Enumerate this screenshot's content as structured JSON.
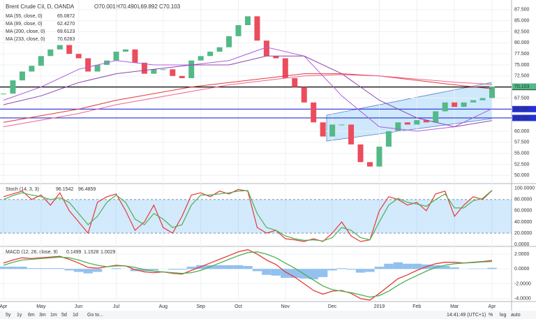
{
  "header": {
    "symbol": "Brent Crude Oil, D, OANDA",
    "ohlc": [
      "O70.001",
      "H70.490",
      "L69.892",
      "C70.103"
    ]
  },
  "chart_data": [
    {
      "type": "candlestick",
      "x_labels": [
        "Apr",
        "May",
        "Jun",
        "Jul",
        "Aug",
        "Sep",
        "Oct",
        "Nov",
        "Dec",
        "2019",
        "Feb",
        "Mar",
        "Apr"
      ],
      "closes": [
        68.5,
        71.5,
        73.5,
        74.8,
        77,
        78.5,
        79.5,
        77.5,
        76.5,
        73.5,
        75,
        76,
        78,
        78.5,
        75.5,
        73,
        74,
        74,
        72.5,
        72,
        76,
        77,
        78,
        79,
        81.5,
        84,
        86,
        80.5,
        77,
        76.5,
        72,
        70,
        66.5,
        62,
        58.8,
        61.5,
        61.5,
        57,
        53,
        52,
        56.5,
        60,
        62,
        61.5,
        62.5,
        62,
        64.5,
        66.5,
        65.5,
        66.5,
        67,
        67.5,
        70.1
      ],
      "up_color": "#53b987",
      "down_color": "#eb4d5c",
      "ylim": [
        48.3,
        88.9
      ],
      "yticks": [
        {
          "value": 50,
          "label": "50.000"
        },
        {
          "value": 52.5,
          "label": "52.500"
        },
        {
          "value": 55,
          "label": "55.000"
        },
        {
          "value": 57.5,
          "label": "57.500"
        },
        {
          "value": 60,
          "label": "60.000"
        },
        {
          "value": 67.5,
          "label": "67.500"
        },
        {
          "value": 72.5,
          "label": "72.500"
        },
        {
          "value": 75,
          "label": "75.000"
        },
        {
          "value": 77.5,
          "label": "77.500"
        },
        {
          "value": 80,
          "label": "80.000"
        },
        {
          "value": 82.5,
          "label": "82.500"
        },
        {
          "value": 85,
          "label": "85.000"
        },
        {
          "value": 87.5,
          "label": "87.500"
        }
      ],
      "grid": true,
      "series": [
        {
          "name": "MA (55, close, 0)",
          "last": "65.0872",
          "color": "#b05ce0",
          "values": [
            67,
            70,
            74,
            76,
            75,
            75,
            76,
            79,
            77,
            68,
            61,
            60,
            61,
            65.1
          ]
        },
        {
          "name": "MA (89, close, 0)",
          "last": "62.4270",
          "color": "#8e44ad",
          "values": [
            66,
            68,
            71,
            73,
            74,
            75,
            75,
            77,
            77,
            73,
            67,
            63,
            61,
            62.4
          ]
        },
        {
          "name": "MA (200, close, 0)",
          "last": "69.6123",
          "color": "#e53935",
          "values": [
            62,
            63.5,
            65,
            67,
            68.5,
            70,
            71,
            72,
            73,
            73,
            72.5,
            71.5,
            70.5,
            69.6
          ]
        },
        {
          "name": "MA (233, close, 0)",
          "last": "70.6283",
          "color": "#f06292",
          "values": [
            61,
            62.5,
            64,
            66,
            67.5,
            69,
            70.5,
            71.5,
            72.5,
            72.8,
            72.5,
            71.8,
            71.1,
            70.6
          ]
        }
      ],
      "levels": [
        {
          "value": 70,
          "label": "70.000",
          "color": "#000000"
        },
        {
          "value": 65,
          "label": "65.000",
          "color": "#2431d6"
        },
        {
          "value": 63,
          "label": "63.000",
          "color": "#2431d6"
        }
      ],
      "last_price": {
        "value": 70.103,
        "label": "70.103",
        "color": "#53b987"
      }
    },
    {
      "type": "line",
      "title": "Stoch (14, 3, 3)",
      "ylim": [
        -2.5,
        106
      ],
      "yticks": [
        {
          "value": 0,
          "label": "0.0000"
        },
        {
          "value": 20,
          "label": "20.0000"
        },
        {
          "value": 40,
          "label": "40.0000"
        },
        {
          "value": 60,
          "label": "60.0000"
        },
        {
          "value": 80,
          "label": "80.0000"
        },
        {
          "value": 100,
          "label": "100.0000"
        }
      ],
      "series": [
        {
          "last": "96.1542",
          "color": "#e53935",
          "values": [
            85,
            90,
            95,
            80,
            88,
            70,
            92,
            60,
            40,
            20,
            75,
            85,
            90,
            60,
            25,
            40,
            70,
            30,
            20,
            50,
            88,
            92,
            85,
            95,
            90,
            98,
            95,
            30,
            20,
            25,
            10,
            8,
            5,
            10,
            5,
            20,
            40,
            15,
            5,
            8,
            60,
            85,
            80,
            70,
            75,
            60,
            90,
            95,
            50,
            70,
            85,
            80,
            96.2
          ]
        },
        {
          "last": "96.4859",
          "color": "#4caf50",
          "values": [
            80,
            87,
            92,
            88,
            85,
            80,
            83,
            75,
            55,
            35,
            50,
            75,
            88,
            75,
            45,
            35,
            55,
            45,
            30,
            35,
            70,
            88,
            88,
            90,
            92,
            95,
            96,
            55,
            30,
            25,
            15,
            10,
            7,
            8,
            6,
            12,
            30,
            25,
            12,
            8,
            40,
            70,
            82,
            75,
            72,
            68,
            80,
            90,
            65,
            65,
            78,
            82,
            96.5
          ]
        }
      ]
    },
    {
      "type": "combo",
      "title": "MACD (12, 26, close, 9)",
      "ylim": [
        -4.4,
        2.85
      ],
      "yticks": [
        {
          "value": -4,
          "label": "-4.0000"
        },
        {
          "value": -2,
          "label": "-2.0000"
        },
        {
          "value": 0,
          "label": "0.0000"
        },
        {
          "value": 2,
          "label": "2.0000"
        }
      ],
      "histogram": {
        "last": "0.1499",
        "color": "#64a6e8",
        "values": [
          0.3,
          0.3,
          0.3,
          0.1,
          0.1,
          0.1,
          0.1,
          -0.2,
          -0.4,
          -0.6,
          -0.4,
          0,
          0.1,
          0,
          -0.3,
          -0.3,
          -0.2,
          0,
          -0.1,
          -0.1,
          0.3,
          0.5,
          0.5,
          0.5,
          0.5,
          0.5,
          0.4,
          -0.3,
          -0.8,
          -0.9,
          -1.2,
          -1.2,
          -1.3,
          -1.4,
          -1.1,
          -0.2,
          0.1,
          -0.1,
          -0.5,
          -0.4,
          0.3,
          0.7,
          0.9,
          0.7,
          0.7,
          0.6,
          0.5,
          0.4,
          0.2,
          0,
          0.05,
          0.05,
          0.15
        ]
      },
      "series": [
        {
          "last": "1.1528",
          "color": "#e53935",
          "values": [
            0.8,
            1.2,
            1.5,
            1.4,
            1.5,
            1.6,
            1.7,
            1.3,
            0.8,
            0.2,
            0.1,
            0.3,
            0.5,
            0.4,
            -0.1,
            -0.4,
            -0.5,
            -0.4,
            -0.6,
            -0.7,
            -0.2,
            0.3,
            0.8,
            1.3,
            1.8,
            2.3,
            2.6,
            2.0,
            1.2,
            0.6,
            -0.4,
            -1.1,
            -2.0,
            -2.9,
            -3.4,
            -3.0,
            -2.9,
            -3.3,
            -4.0,
            -4.2,
            -3.3,
            -2.3,
            -1.3,
            -0.8,
            -0.2,
            0.3,
            0.7,
            0.9,
            0.9,
            0.8,
            0.9,
            1.0,
            1.15
          ]
        },
        {
          "last": "1.0029",
          "color": "#4caf50",
          "values": [
            0.5,
            0.9,
            1.2,
            1.3,
            1.4,
            1.5,
            1.6,
            1.5,
            1.2,
            0.8,
            0.5,
            0.3,
            0.4,
            0.4,
            0.2,
            -0.1,
            -0.3,
            -0.4,
            -0.5,
            -0.6,
            -0.5,
            -0.2,
            0.3,
            0.8,
            1.3,
            1.8,
            2.2,
            2.3,
            2.0,
            1.5,
            0.8,
            0.1,
            -0.7,
            -1.5,
            -2.3,
            -2.8,
            -3.0,
            -3.2,
            -3.5,
            -3.8,
            -3.6,
            -3.0,
            -2.2,
            -1.5,
            -0.9,
            -0.3,
            0.2,
            0.5,
            0.7,
            0.8,
            0.85,
            0.95,
            1.0
          ]
        }
      ]
    }
  ],
  "toolbar": {
    "ranges": [
      "5y",
      "1y",
      "6m",
      "3m",
      "1m",
      "5d",
      "1d"
    ],
    "goto": "Go to...",
    "clock": "14:41:49 (UTC+1)",
    "options": [
      "%",
      "log",
      "auto"
    ]
  }
}
